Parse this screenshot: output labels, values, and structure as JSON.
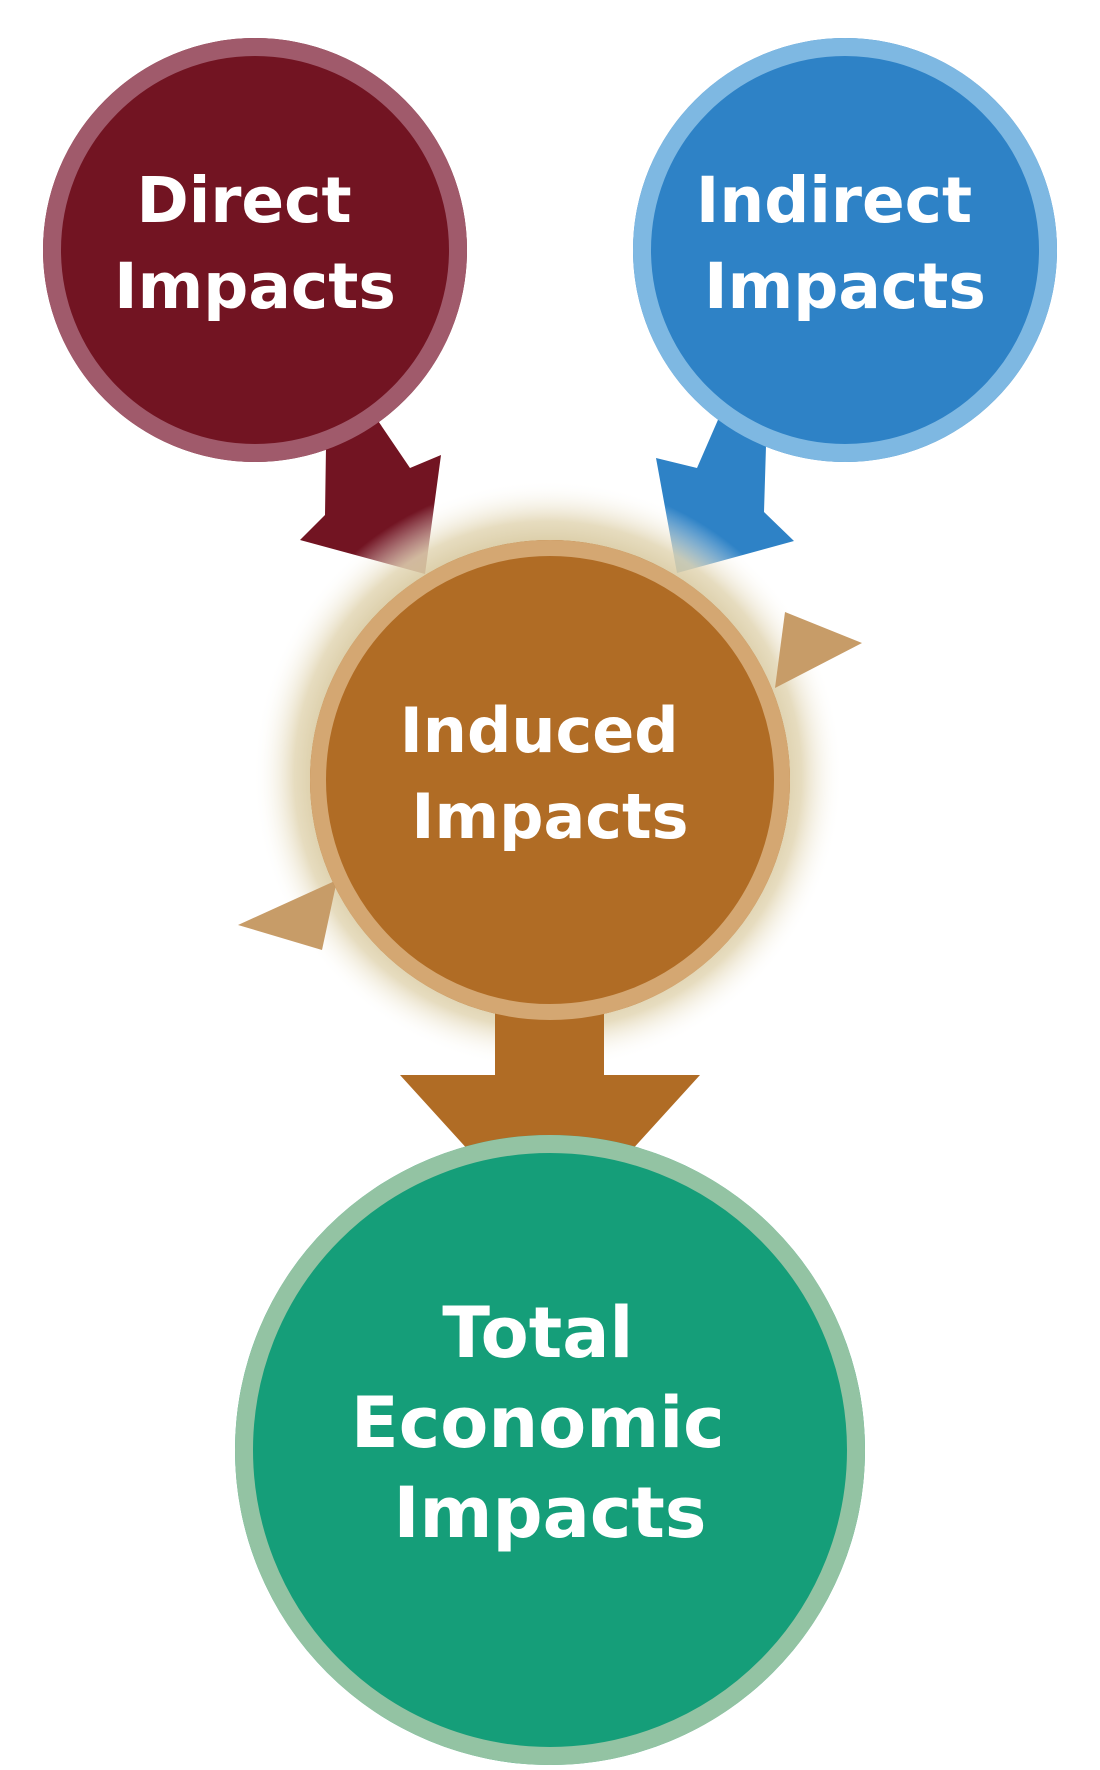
{
  "diagram": {
    "nodes": {
      "direct": {
        "line1": "Direct",
        "line2": "Impacts",
        "fill": "#721422",
        "ring": "#A05A6B"
      },
      "indirect": {
        "line1": "Indirect",
        "line2": "Impacts",
        "fill": "#2E82C6",
        "ring": "#7EB8E2"
      },
      "induced": {
        "line1": "Induced",
        "line2": "Impacts",
        "fill": "#B06C25",
        "ring": "#D4A772",
        "halo": "#CDBB8A"
      },
      "total": {
        "line1": "Total",
        "line2": "Economic",
        "line3": "Impacts",
        "fill": "#159E79",
        "ring": "#93C3A3"
      }
    },
    "arrows": {
      "direct_to_induced": "#721422",
      "indirect_to_induced": "#2E82C6",
      "induced_to_total": "#B06C25",
      "cycle": "#C79C68"
    }
  }
}
